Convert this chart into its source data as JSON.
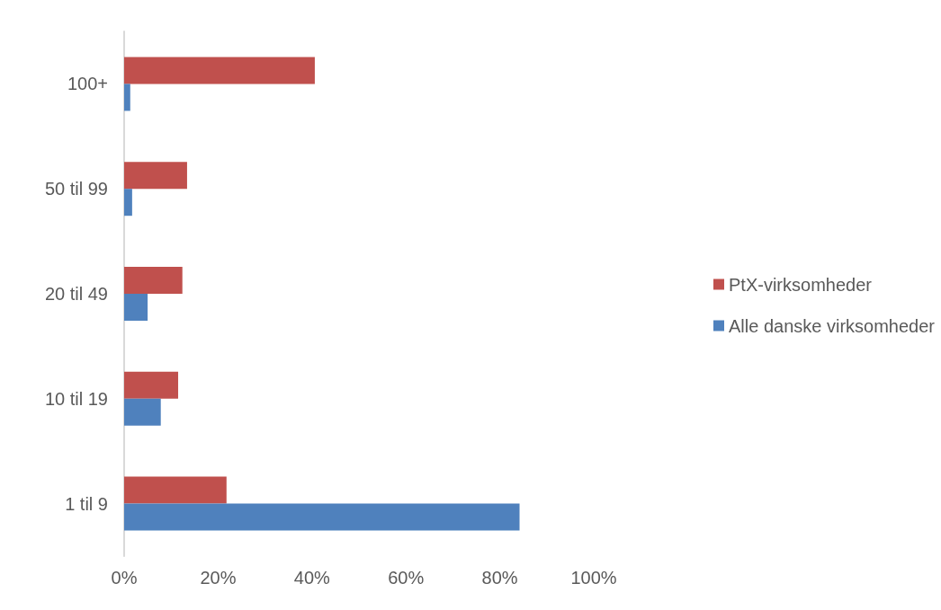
{
  "chart_data": {
    "type": "bar",
    "orientation": "horizontal",
    "categories": [
      "100+",
      "50 til 99",
      "20 til 49",
      "10 til 19",
      "1 til 9"
    ],
    "series": [
      {
        "name": "PtX-virksomheder",
        "color": "#c0504d",
        "values": [
          40.6,
          13.4,
          12.4,
          11.5,
          21.8
        ]
      },
      {
        "name": "Alle danske virksomheder",
        "color": "#4f81bd",
        "values": [
          1.3,
          1.7,
          5.0,
          7.8,
          84.2
        ]
      }
    ],
    "xlim": [
      0,
      100
    ],
    "xticks": [
      {
        "value": 0,
        "label": "0%"
      },
      {
        "value": 20,
        "label": "20%"
      },
      {
        "value": 40,
        "label": "40%"
      },
      {
        "value": 60,
        "label": "60%"
      },
      {
        "value": 80,
        "label": "80%"
      },
      {
        "value": 100,
        "label": "100%"
      }
    ],
    "grid": false,
    "legend": "right"
  }
}
